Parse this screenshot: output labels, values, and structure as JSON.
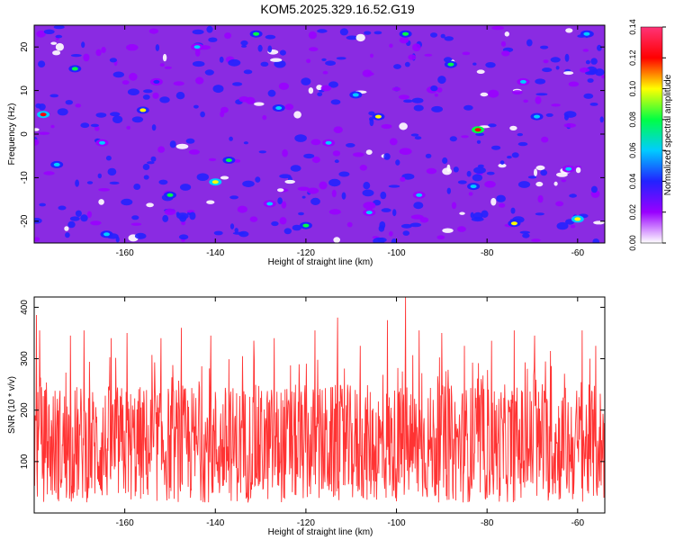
{
  "figure": {
    "title": "KOM5.2025.329.16.52.G19"
  },
  "chart_data": [
    {
      "type": "heatmap",
      "title": "",
      "xlabel": "Height of straight line (km)",
      "ylabel": "Frequency (Hz)",
      "xlim": [
        -180,
        -54
      ],
      "ylim": [
        -25,
        25
      ],
      "xticks": [
        -160,
        -140,
        -120,
        -100,
        -80,
        -60
      ],
      "xtick_labels": [
        "-160",
        "-140",
        "-120",
        "-100",
        "-80",
        "-60"
      ],
      "yticks": [
        -20,
        -10,
        0,
        10,
        20
      ],
      "ytick_labels": [
        "-20",
        "-10",
        "0",
        "10",
        "20"
      ],
      "colorbar": {
        "label": "Normalized spectral amplitude",
        "range": [
          0,
          0.14
        ],
        "ticks": [
          0,
          0.02,
          0.04,
          0.06,
          0.08,
          0.1,
          0.12,
          0.14
        ],
        "tick_labels": [
          "0.00",
          "0.02",
          "0.04",
          "0.06",
          "0.08",
          "0.10",
          "0.12",
          "0.14"
        ],
        "colors": [
          "#ffffff",
          "#9900ff",
          "#2222ff",
          "#00ccff",
          "#00ff44",
          "#ffff00",
          "#ff0000",
          "#ff3377"
        ]
      },
      "background": "mostly 0.01-0.04 with scattered peaks",
      "peaks": [
        {
          "x": -82,
          "y": 1,
          "value": 0.13
        },
        {
          "x": -178,
          "y": 4.5,
          "value": 0.11
        },
        {
          "x": -140,
          "y": -11,
          "value": 0.1
        },
        {
          "x": -156,
          "y": 5.5,
          "value": 0.09
        },
        {
          "x": -104,
          "y": 4,
          "value": 0.09
        },
        {
          "x": -74,
          "y": -20.5,
          "value": 0.09
        },
        {
          "x": -60,
          "y": -19.5,
          "value": 0.1
        },
        {
          "x": -171,
          "y": 15,
          "value": 0.08
        },
        {
          "x": -131,
          "y": 23,
          "value": 0.08
        },
        {
          "x": -98,
          "y": 23,
          "value": 0.07
        },
        {
          "x": -137,
          "y": -6,
          "value": 0.07
        },
        {
          "x": -150,
          "y": -14,
          "value": 0.07
        },
        {
          "x": -88,
          "y": 16,
          "value": 0.07
        },
        {
          "x": -109,
          "y": 9,
          "value": 0.06
        },
        {
          "x": -120,
          "y": -21,
          "value": 0.07
        },
        {
          "x": -164,
          "y": -23,
          "value": 0.06
        },
        {
          "x": -69,
          "y": 4,
          "value": 0.06
        },
        {
          "x": -58,
          "y": 23,
          "value": 0.06
        },
        {
          "x": -126,
          "y": 6,
          "value": 0.06
        },
        {
          "x": -175,
          "y": -7,
          "value": 0.06
        },
        {
          "x": -83,
          "y": -12,
          "value": 0.06
        },
        {
          "x": -144,
          "y": 20,
          "value": 0.05
        },
        {
          "x": -115,
          "y": -2,
          "value": 0.05
        },
        {
          "x": -95,
          "y": -14,
          "value": 0.05
        },
        {
          "x": -165,
          "y": -2,
          "value": 0.05
        },
        {
          "x": -62,
          "y": -8,
          "value": 0.05
        },
        {
          "x": -128,
          "y": -16,
          "value": 0.05
        },
        {
          "x": -72,
          "y": 12,
          "value": 0.05
        },
        {
          "x": -153,
          "y": 12,
          "value": 0.04
        },
        {
          "x": -106,
          "y": -18,
          "value": 0.05
        }
      ],
      "color_scale": "continuous"
    },
    {
      "type": "line",
      "title": "",
      "xlabel": "Height of straight line (km)",
      "ylabel": "SNR (10 * v/v)",
      "xlim": [
        -180,
        -54
      ],
      "ylim": [
        0,
        420
      ],
      "xticks": [
        -160,
        -140,
        -120,
        -100,
        -80,
        -60
      ],
      "xtick_labels": [
        "-160",
        "-140",
        "-120",
        "-100",
        "-80",
        "-60"
      ],
      "yticks": [
        100,
        200,
        300,
        400
      ],
      "ytick_labels": [
        "100",
        "200",
        "300",
        "400"
      ],
      "series": [
        {
          "color": "#ff3333",
          "points_per_km": 10,
          "baseline_range": [
            20,
            250
          ],
          "spikes": [
            {
              "x": -179.5,
              "y": 385
            },
            {
              "x": -178.8,
              "y": 355
            },
            {
              "x": -172,
              "y": 345
            },
            {
              "x": -169,
              "y": 355
            },
            {
              "x": -163,
              "y": 340
            },
            {
              "x": -159.5,
              "y": 350
            },
            {
              "x": -152,
              "y": 340
            },
            {
              "x": -147.5,
              "y": 360
            },
            {
              "x": -141,
              "y": 345
            },
            {
              "x": -131.5,
              "y": 335
            },
            {
              "x": -127,
              "y": 340
            },
            {
              "x": -118,
              "y": 355
            },
            {
              "x": -113,
              "y": 380
            },
            {
              "x": -108,
              "y": 325
            },
            {
              "x": -102,
              "y": 375
            },
            {
              "x": -98,
              "y": 420
            },
            {
              "x": -95,
              "y": 355
            },
            {
              "x": -90,
              "y": 350
            },
            {
              "x": -85,
              "y": 325
            },
            {
              "x": -79,
              "y": 335
            },
            {
              "x": -74,
              "y": 355
            },
            {
              "x": -69.5,
              "y": 345
            },
            {
              "x": -66,
              "y": 315
            },
            {
              "x": -59,
              "y": 355
            },
            {
              "x": -56,
              "y": 325
            }
          ]
        }
      ]
    }
  ]
}
